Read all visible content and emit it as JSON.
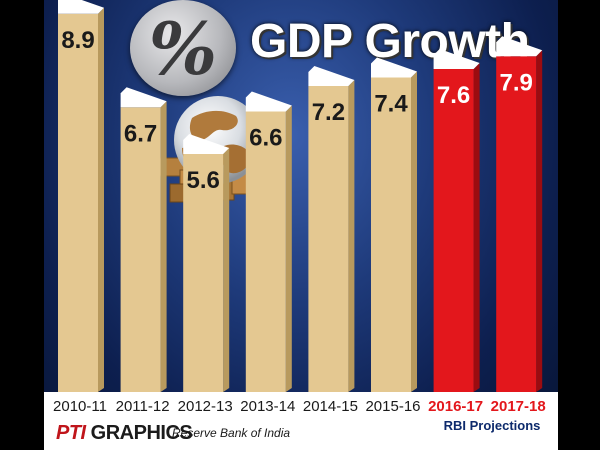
{
  "chart_data": {
    "type": "bar",
    "title": "GDP Growth",
    "categories": [
      "2010-11",
      "2011-12",
      "2012-13",
      "2013-14",
      "2014-15",
      "2015-16",
      "2016-17",
      "2017-18"
    ],
    "values": [
      8.9,
      6.7,
      5.6,
      6.6,
      7.2,
      7.4,
      7.6,
      7.9
    ],
    "value_labels": [
      "8.9",
      "6.7",
      "5.6",
      "6.6",
      "7.2",
      "7.4",
      "7.6",
      "7.9"
    ],
    "projected": [
      false,
      false,
      false,
      false,
      false,
      false,
      true,
      true
    ],
    "colors": {
      "actual": "#e4c891",
      "projected": "#e3171c",
      "label_actual": "#1a1a1a",
      "label_projected": "#ffffff"
    },
    "annotation": "RBI Projections",
    "ylim": [
      0,
      9.5
    ],
    "grid": false,
    "legend": "none"
  },
  "header": {
    "title": "GDP Growth",
    "percent_symbol": "%"
  },
  "footer": {
    "brand_prefix": "PTI",
    "brand_suffix": " GRAPHICS",
    "source": "Reserve Bank of India"
  }
}
